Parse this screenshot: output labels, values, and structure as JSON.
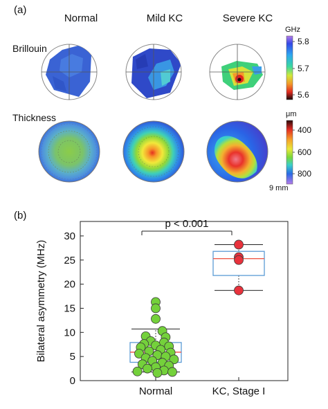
{
  "panel_a": {
    "letter": "(a)",
    "columns": [
      "Normal",
      "Mild KC",
      "Severe KC"
    ],
    "rows": [
      "Brillouin",
      "Thickness"
    ],
    "brillouin_colorbar": {
      "unit": "GHz",
      "ticks": [
        "5.8",
        "5.7",
        "5.6"
      ]
    },
    "thickness_colorbar": {
      "unit": "μm",
      "ticks": [
        "400",
        "600",
        "800"
      ]
    },
    "scale_label": "9 mm"
  },
  "panel_b": {
    "letter": "(b)"
  },
  "chart_data": {
    "type": "scatter",
    "ylabel": "Bilateral asymmetry (MHz)",
    "xlabel": "",
    "ylim": [
      0,
      33
    ],
    "yticks": [
      0,
      5,
      10,
      15,
      20,
      25,
      30
    ],
    "categories": [
      "Normal",
      "KC, Stage I"
    ],
    "annotation": "p < 0.001",
    "boxplots": [
      {
        "category": "Normal",
        "whisker_low": 1.8,
        "q1": 3.8,
        "median": 5.9,
        "q3": 7.9,
        "whisker_high": 10.7,
        "color": "#5b9bd5",
        "median_color": "#ef5a4a"
      },
      {
        "category": "KC, Stage I",
        "whisker_low": 18.7,
        "q1": 21.8,
        "median": 25.3,
        "q3": 26.8,
        "whisker_high": 28.2,
        "color": "#5b9bd5",
        "median_color": "#ef5a4a"
      }
    ],
    "series": [
      {
        "category": "Normal",
        "color": "#74d13b",
        "points": [
          [
            0.0,
            16.3
          ],
          [
            0.0,
            15.0
          ],
          [
            0.0,
            12.8
          ],
          [
            0.04,
            10.3
          ],
          [
            -0.06,
            9.2
          ],
          [
            0.06,
            9.0
          ],
          [
            -0.03,
            8.2
          ],
          [
            0.05,
            7.9
          ],
          [
            -0.07,
            7.6
          ],
          [
            0.0,
            7.3
          ],
          [
            0.08,
            7.1
          ],
          [
            -0.09,
            6.9
          ],
          [
            0.03,
            6.4
          ],
          [
            -0.04,
            6.1
          ],
          [
            0.09,
            5.8
          ],
          [
            -0.1,
            5.6
          ],
          [
            0.01,
            5.3
          ],
          [
            0.06,
            5.0
          ],
          [
            -0.06,
            4.7
          ],
          [
            0.11,
            4.4
          ],
          [
            -0.02,
            4.1
          ],
          [
            0.04,
            3.7
          ],
          [
            -0.08,
            3.4
          ],
          [
            0.08,
            3.1
          ],
          [
            0.0,
            2.8
          ],
          [
            -0.05,
            2.5
          ],
          [
            0.05,
            2.1
          ],
          [
            -0.11,
            1.9
          ],
          [
            0.1,
            1.8
          ],
          [
            0.01,
            1.6
          ]
        ]
      },
      {
        "category": "KC, Stage I",
        "color": "#e8323c",
        "points": [
          [
            0.0,
            28.2
          ],
          [
            0.0,
            25.6
          ],
          [
            0.0,
            25.0
          ],
          [
            0.0,
            18.7
          ]
        ]
      }
    ]
  }
}
